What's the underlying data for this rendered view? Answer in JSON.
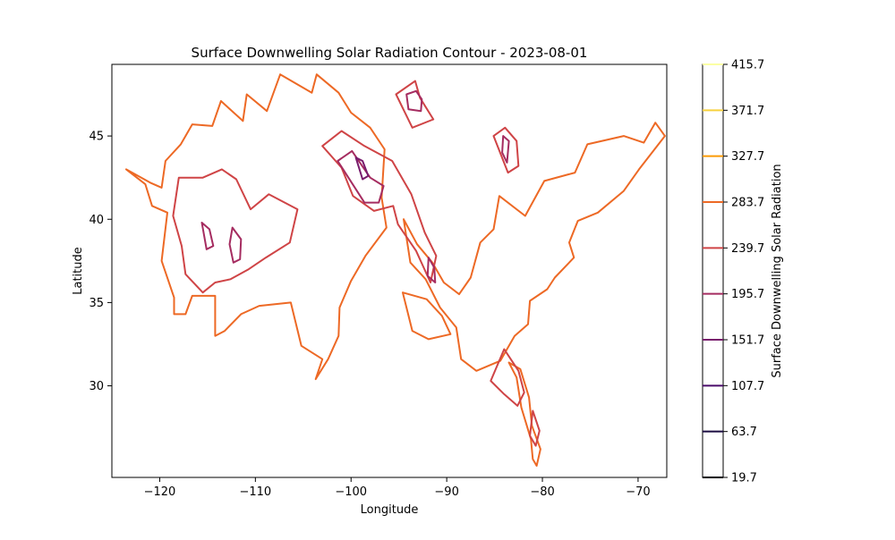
{
  "chart_data": {
    "type": "contour",
    "title": "Surface Downwelling Solar Radiation Contour - 2023-08-01",
    "xlabel": "Longitude",
    "ylabel": "Latitude",
    "xlim": [
      -125,
      -67
    ],
    "ylim": [
      24.5,
      49.3
    ],
    "x_ticks": [
      -120,
      -110,
      -100,
      -90,
      -80,
      -70
    ],
    "y_ticks": [
      30,
      35,
      40,
      45
    ],
    "colorbar": {
      "label": "Surface Downwelling Solar Radiation",
      "range": [
        19.7,
        415.7
      ],
      "levels": [
        {
          "value": 19.7,
          "label": "19.7",
          "color": "#000004"
        },
        {
          "value": 63.7,
          "label": "63.7",
          "color": "#1b0c41"
        },
        {
          "value": 107.7,
          "label": "107.7",
          "color": "#4a0c6b"
        },
        {
          "value": 151.7,
          "label": "151.7",
          "color": "#781c6d"
        },
        {
          "value": 195.7,
          "label": "195.7",
          "color": "#a52c60"
        },
        {
          "value": 239.7,
          "label": "239.7",
          "color": "#cf4446"
        },
        {
          "value": 283.7,
          "label": "283.7",
          "color": "#ed6925"
        },
        {
          "value": 327.7,
          "label": "327.7",
          "color": "#fb9b06"
        },
        {
          "value": 371.7,
          "label": "371.7",
          "color": "#f7d13d"
        },
        {
          "value": 415.7,
          "label": "415.7",
          "color": "#fcffa4"
        }
      ]
    },
    "contours": [
      {
        "level": 283.7,
        "points": [
          [
            -123.5,
            43.0
          ],
          [
            -121.0,
            42.2
          ],
          [
            -119.8,
            41.9
          ],
          [
            -119.4,
            43.5
          ],
          [
            -117.8,
            44.5
          ],
          [
            -116.6,
            45.7
          ],
          [
            -114.5,
            45.6
          ],
          [
            -113.6,
            47.1
          ],
          [
            -111.3,
            45.9
          ],
          [
            -110.9,
            47.5
          ],
          [
            -108.8,
            46.5
          ],
          [
            -107.4,
            48.7
          ],
          [
            -104.1,
            47.6
          ],
          [
            -103.6,
            48.7
          ],
          [
            -101.3,
            47.6
          ],
          [
            -100.0,
            46.4
          ],
          [
            -98.0,
            45.5
          ],
          [
            -96.5,
            44.2
          ],
          [
            -96.8,
            41.3
          ],
          [
            -96.3,
            39.5
          ],
          [
            -98.5,
            37.8
          ],
          [
            -100.0,
            36.3
          ],
          [
            -101.2,
            34.7
          ],
          [
            -101.3,
            33.0
          ],
          [
            -102.4,
            31.6
          ],
          [
            -103.7,
            30.4
          ],
          [
            -103.0,
            31.6
          ],
          [
            -105.2,
            32.4
          ],
          [
            -106.3,
            35.0
          ],
          [
            -109.6,
            34.8
          ],
          [
            -111.5,
            34.3
          ],
          [
            -113.2,
            33.3
          ],
          [
            -114.2,
            33.0
          ],
          [
            -114.2,
            35.4
          ],
          [
            -116.6,
            35.4
          ],
          [
            -117.3,
            34.3
          ],
          [
            -118.5,
            34.3
          ],
          [
            -118.5,
            35.3
          ],
          [
            -119.8,
            37.5
          ],
          [
            -119.2,
            40.4
          ],
          [
            -120.8,
            40.8
          ],
          [
            -121.5,
            42.1
          ],
          [
            -123.5,
            43.0
          ]
        ]
      },
      {
        "level": 283.7,
        "points": [
          [
            -94.5,
            40.0
          ],
          [
            -93.1,
            38.5
          ],
          [
            -91.5,
            37.4
          ],
          [
            -90.3,
            36.2
          ],
          [
            -88.7,
            35.5
          ],
          [
            -87.5,
            36.5
          ],
          [
            -86.5,
            38.6
          ],
          [
            -85.1,
            39.4
          ],
          [
            -84.5,
            41.4
          ],
          [
            -81.8,
            40.2
          ],
          [
            -79.8,
            42.3
          ],
          [
            -76.6,
            42.8
          ],
          [
            -75.3,
            44.5
          ],
          [
            -71.5,
            45.0
          ],
          [
            -69.4,
            44.6
          ],
          [
            -68.2,
            45.8
          ],
          [
            -67.2,
            45.0
          ],
          [
            -69.9,
            43.0
          ],
          [
            -71.5,
            41.7
          ],
          [
            -74.2,
            40.4
          ],
          [
            -76.3,
            39.9
          ],
          [
            -77.2,
            38.6
          ],
          [
            -76.7,
            37.7
          ],
          [
            -78.7,
            36.5
          ],
          [
            -79.5,
            35.8
          ],
          [
            -81.3,
            35.1
          ],
          [
            -81.5,
            33.7
          ],
          [
            -82.9,
            33.0
          ],
          [
            -84.4,
            31.5
          ],
          [
            -86.9,
            30.9
          ],
          [
            -88.5,
            31.6
          ],
          [
            -89.0,
            33.5
          ],
          [
            -90.7,
            34.7
          ],
          [
            -92.2,
            36.4
          ],
          [
            -93.8,
            37.4
          ],
          [
            -94.5,
            40.0
          ]
        ]
      },
      {
        "level": 283.7,
        "points": [
          [
            -83.5,
            31.4
          ],
          [
            -82.3,
            31.0
          ],
          [
            -81.4,
            29.3
          ],
          [
            -81.1,
            27.6
          ],
          [
            -80.2,
            26.2
          ],
          [
            -80.6,
            25.2
          ],
          [
            -81.0,
            25.6
          ],
          [
            -81.2,
            26.8
          ],
          [
            -82.2,
            28.7
          ],
          [
            -82.7,
            30.5
          ],
          [
            -83.5,
            31.4
          ]
        ]
      },
      {
        "level": 283.7,
        "points": [
          [
            -94.6,
            35.6
          ],
          [
            -92.1,
            35.2
          ],
          [
            -90.5,
            34.2
          ],
          [
            -89.6,
            33.1
          ],
          [
            -91.9,
            32.8
          ],
          [
            -93.6,
            33.3
          ],
          [
            -94.6,
            35.6
          ]
        ]
      },
      {
        "level": 239.7,
        "points": [
          [
            -118.0,
            42.5
          ],
          [
            -115.5,
            42.5
          ],
          [
            -113.5,
            43.0
          ],
          [
            -112.0,
            42.4
          ],
          [
            -110.5,
            40.6
          ],
          [
            -108.6,
            41.5
          ],
          [
            -105.6,
            40.6
          ],
          [
            -106.4,
            38.6
          ],
          [
            -108.9,
            37.7
          ],
          [
            -110.7,
            37.0
          ],
          [
            -112.6,
            36.4
          ],
          [
            -114.2,
            36.2
          ],
          [
            -115.5,
            35.6
          ],
          [
            -117.3,
            36.7
          ],
          [
            -117.7,
            38.4
          ],
          [
            -118.6,
            40.2
          ],
          [
            -118.0,
            42.5
          ]
        ]
      },
      {
        "level": 239.7,
        "points": [
          [
            -103.0,
            44.4
          ],
          [
            -101.0,
            43.1
          ],
          [
            -99.8,
            41.4
          ],
          [
            -97.6,
            40.5
          ],
          [
            -95.6,
            40.8
          ],
          [
            -95.1,
            39.7
          ],
          [
            -93.2,
            38.1
          ],
          [
            -91.7,
            36.2
          ],
          [
            -91.1,
            37.8
          ],
          [
            -92.3,
            39.2
          ],
          [
            -93.7,
            41.5
          ],
          [
            -95.7,
            43.5
          ],
          [
            -98.6,
            44.4
          ],
          [
            -101.0,
            45.3
          ],
          [
            -103.0,
            44.4
          ]
        ]
      },
      {
        "level": 239.7,
        "points": [
          [
            -95.3,
            47.5
          ],
          [
            -93.3,
            48.3
          ],
          [
            -92.8,
            47.3
          ],
          [
            -91.4,
            46.0
          ],
          [
            -93.6,
            45.5
          ],
          [
            -95.3,
            47.5
          ]
        ]
      },
      {
        "level": 239.7,
        "points": [
          [
            -85.1,
            45.0
          ],
          [
            -83.9,
            45.5
          ],
          [
            -82.7,
            44.7
          ],
          [
            -82.5,
            43.2
          ],
          [
            -83.6,
            42.8
          ],
          [
            -85.1,
            45.0
          ]
        ]
      },
      {
        "level": 239.7,
        "points": [
          [
            -84.0,
            32.2
          ],
          [
            -82.5,
            30.9
          ],
          [
            -81.9,
            29.6
          ],
          [
            -82.6,
            28.8
          ],
          [
            -84.0,
            29.5
          ],
          [
            -85.4,
            30.3
          ],
          [
            -84.0,
            32.2
          ]
        ]
      },
      {
        "level": 239.7,
        "points": [
          [
            -81.0,
            28.5
          ],
          [
            -80.3,
            27.3
          ],
          [
            -80.7,
            26.4
          ],
          [
            -81.3,
            27.0
          ],
          [
            -81.0,
            28.5
          ]
        ]
      },
      {
        "level": 195.7,
        "points": [
          [
            -115.6,
            39.8
          ],
          [
            -114.8,
            39.4
          ],
          [
            -114.4,
            38.4
          ],
          [
            -115.1,
            38.2
          ],
          [
            -115.6,
            39.8
          ]
        ]
      },
      {
        "level": 195.7,
        "points": [
          [
            -112.4,
            39.5
          ],
          [
            -111.5,
            38.8
          ],
          [
            -111.6,
            37.6
          ],
          [
            -112.3,
            37.4
          ],
          [
            -112.7,
            38.5
          ],
          [
            -112.4,
            39.5
          ]
        ]
      },
      {
        "level": 195.7,
        "points": [
          [
            -101.4,
            43.5
          ],
          [
            -99.9,
            44.1
          ],
          [
            -98.0,
            42.5
          ],
          [
            -96.6,
            42.0
          ],
          [
            -97.1,
            41.0
          ],
          [
            -98.6,
            41.0
          ],
          [
            -101.4,
            43.5
          ]
        ]
      },
      {
        "level": 195.7,
        "points": [
          [
            -94.2,
            47.5
          ],
          [
            -93.2,
            47.7
          ],
          [
            -92.6,
            47.2
          ],
          [
            -92.7,
            46.5
          ],
          [
            -94.0,
            46.6
          ],
          [
            -94.2,
            47.5
          ]
        ]
      },
      {
        "level": 195.7,
        "points": [
          [
            -84.1,
            45.0
          ],
          [
            -83.5,
            44.7
          ],
          [
            -83.7,
            43.4
          ],
          [
            -84.2,
            44.0
          ],
          [
            -84.1,
            45.0
          ]
        ]
      },
      {
        "level": 195.7,
        "points": [
          [
            -91.9,
            37.7
          ],
          [
            -91.3,
            37.1
          ],
          [
            -91.2,
            36.2
          ],
          [
            -92.0,
            36.6
          ],
          [
            -91.9,
            37.7
          ]
        ]
      },
      {
        "level": 151.7,
        "points": [
          [
            -99.5,
            43.7
          ],
          [
            -98.8,
            43.5
          ],
          [
            -98.2,
            42.6
          ],
          [
            -98.8,
            42.4
          ],
          [
            -99.5,
            43.7
          ]
        ]
      }
    ]
  }
}
